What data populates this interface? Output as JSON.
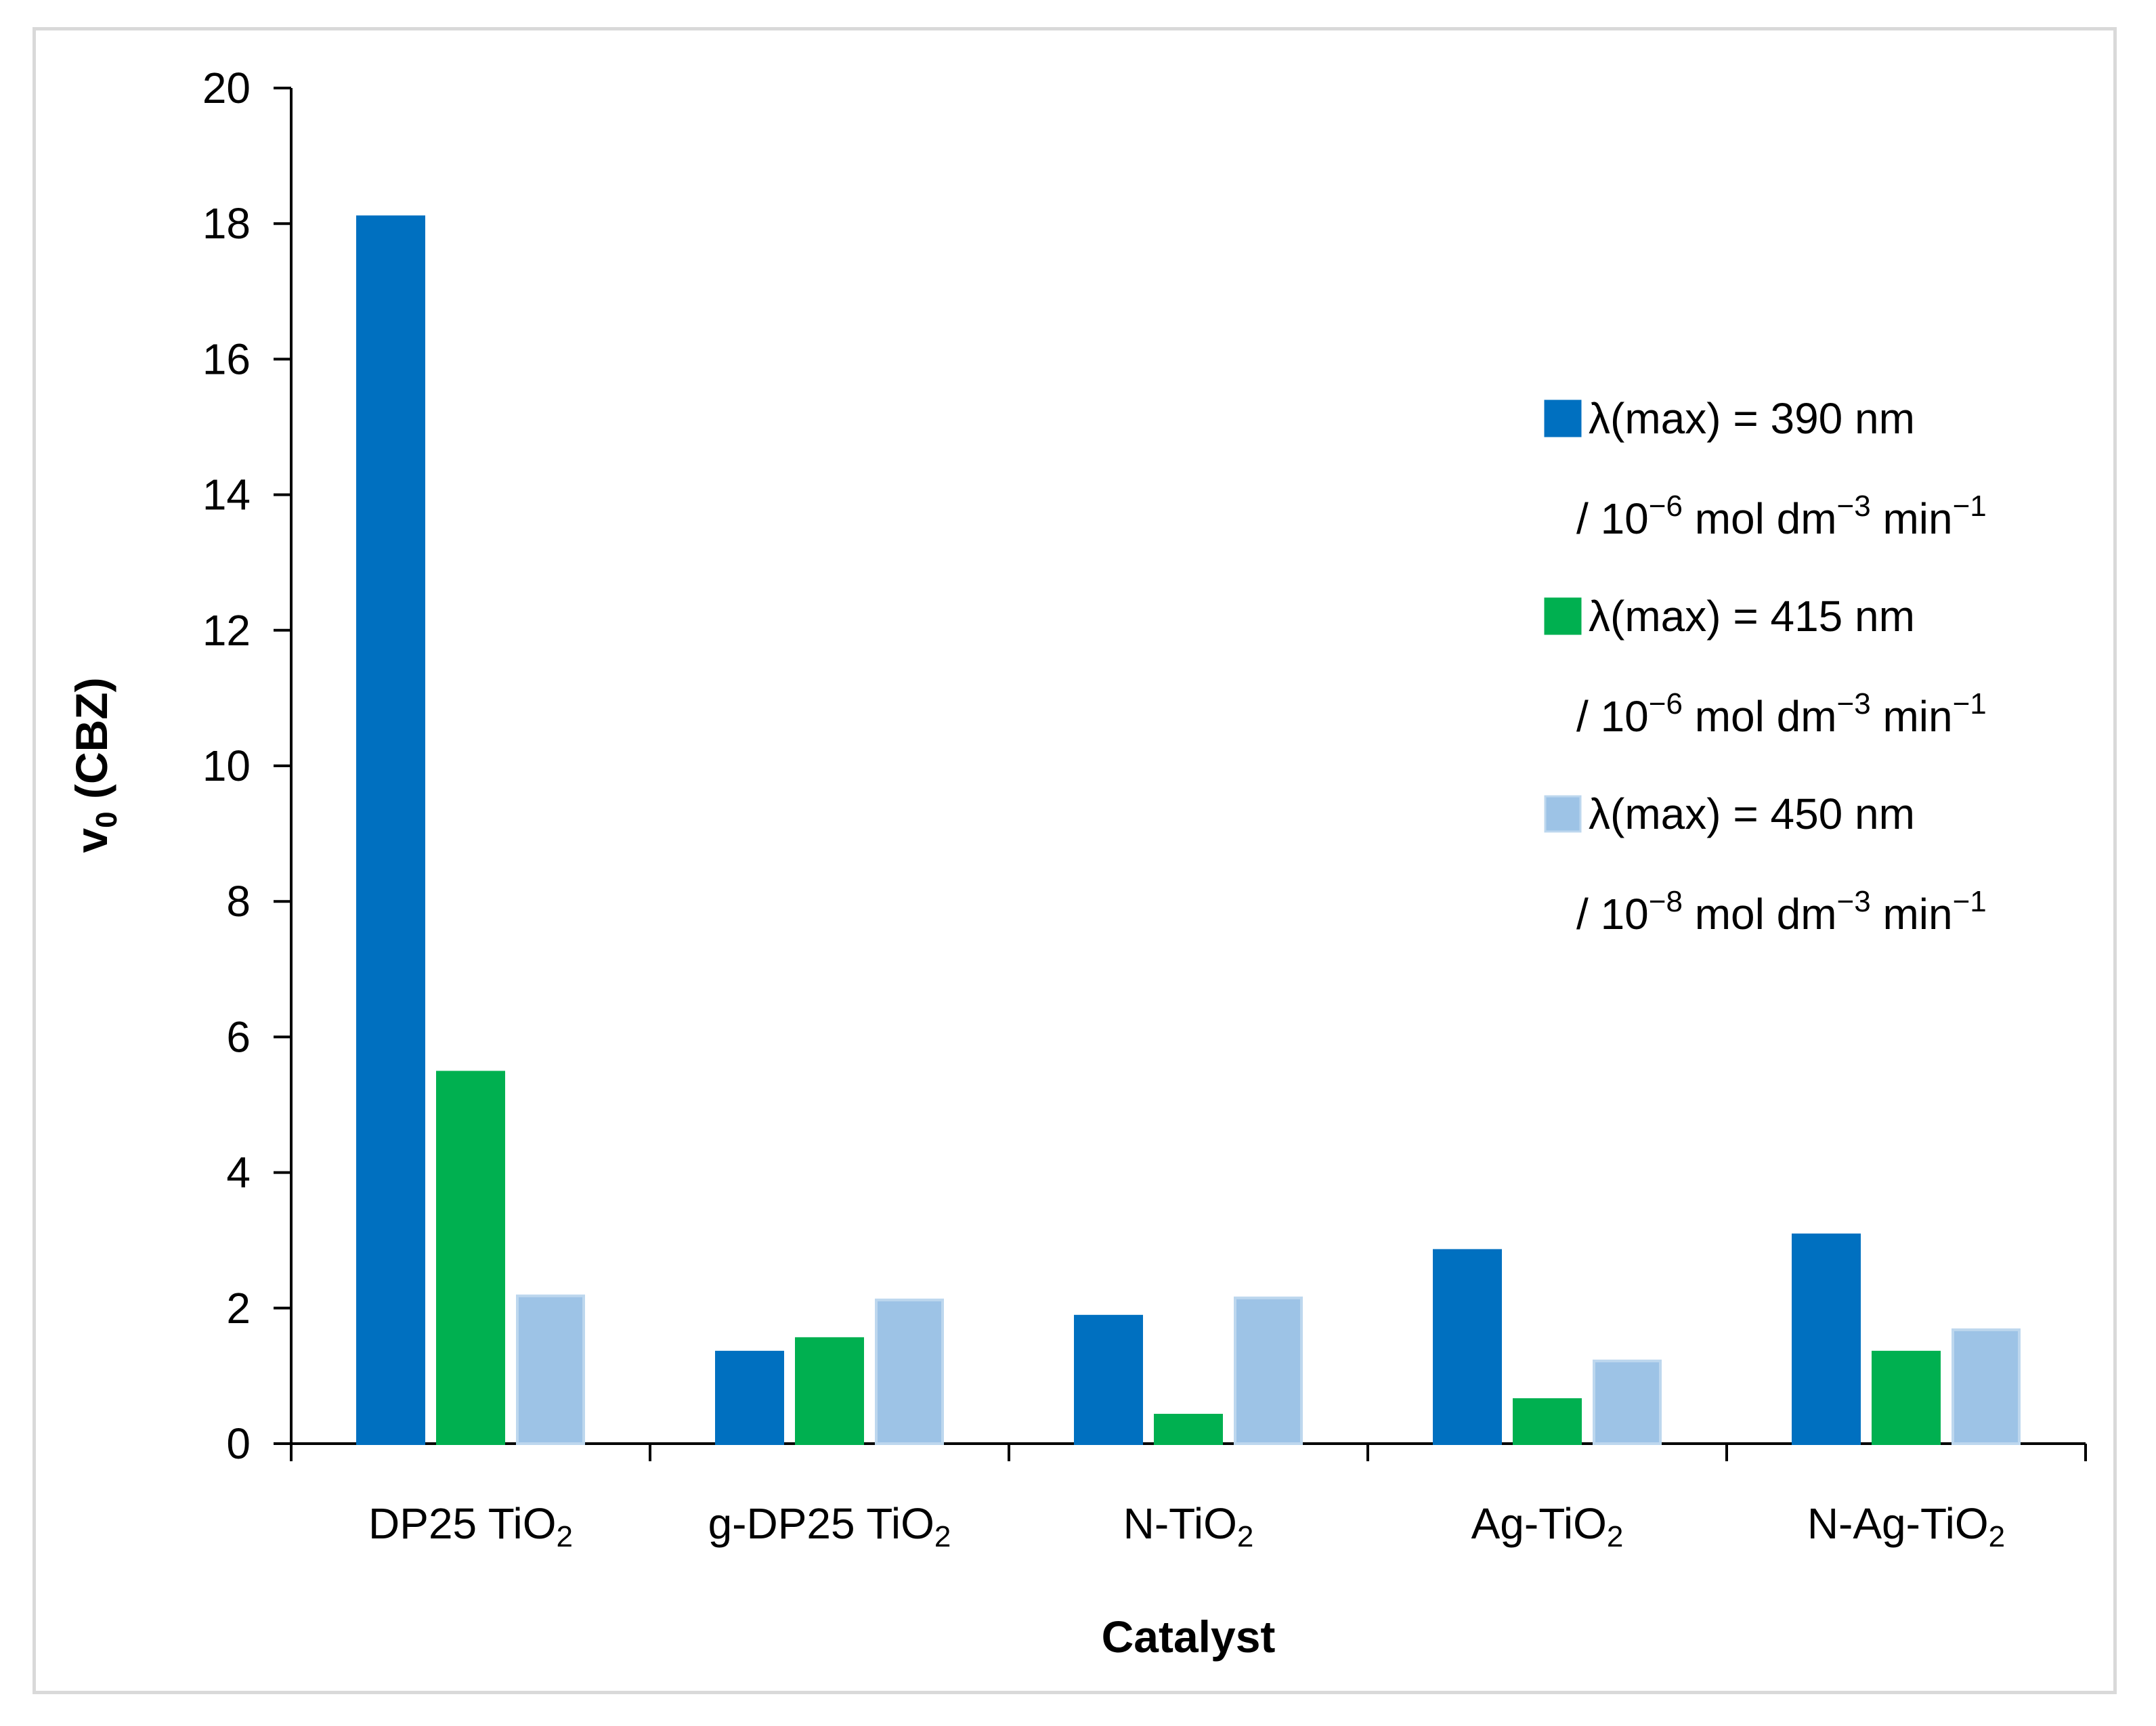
{
  "chart_data": {
    "type": "bar",
    "title": "",
    "xlabel": "Catalyst",
    "ylabel": "v",
    "ylabel_subscript": "0",
    "ylabel_suffix": " (CBZ)",
    "ylim": [
      0,
      20
    ],
    "yticks": [
      0,
      2,
      4,
      6,
      8,
      10,
      12,
      14,
      16,
      18,
      20
    ],
    "grid": false,
    "legend_position": "right",
    "categories": [
      {
        "base": "DP25 TiO",
        "sub": "2"
      },
      {
        "base": "g-DP25 TiO",
        "sub": "2"
      },
      {
        "base": "N-TiO",
        "sub": "2"
      },
      {
        "base": "Ag-TiO",
        "sub": "2"
      },
      {
        "base": "N-Ag-TiO",
        "sub": "2"
      }
    ],
    "series": [
      {
        "name": "λ(max) = 390 nm",
        "unit_line": [
          "/ 10",
          "−6",
          " mol dm",
          "−3",
          " min",
          "−1"
        ],
        "color": "#0070c0",
        "values": [
          18.1,
          1.35,
          1.88,
          2.85,
          3.08
        ]
      },
      {
        "name": "λ(max) = 415 nm",
        "unit_line": [
          "/ 10",
          "−6",
          " mol dm",
          "−3",
          " min",
          "−1"
        ],
        "color": "#00b050",
        "values": [
          5.48,
          1.55,
          0.42,
          0.65,
          1.35
        ]
      },
      {
        "name": "λ(max) = 450 nm",
        "unit_line": [
          "/ 10",
          "−8",
          " mol dm",
          "−3",
          " min",
          "−1"
        ],
        "color": "#9dc3e6",
        "values": [
          2.18,
          2.12,
          2.15,
          1.22,
          1.68
        ]
      }
    ]
  }
}
